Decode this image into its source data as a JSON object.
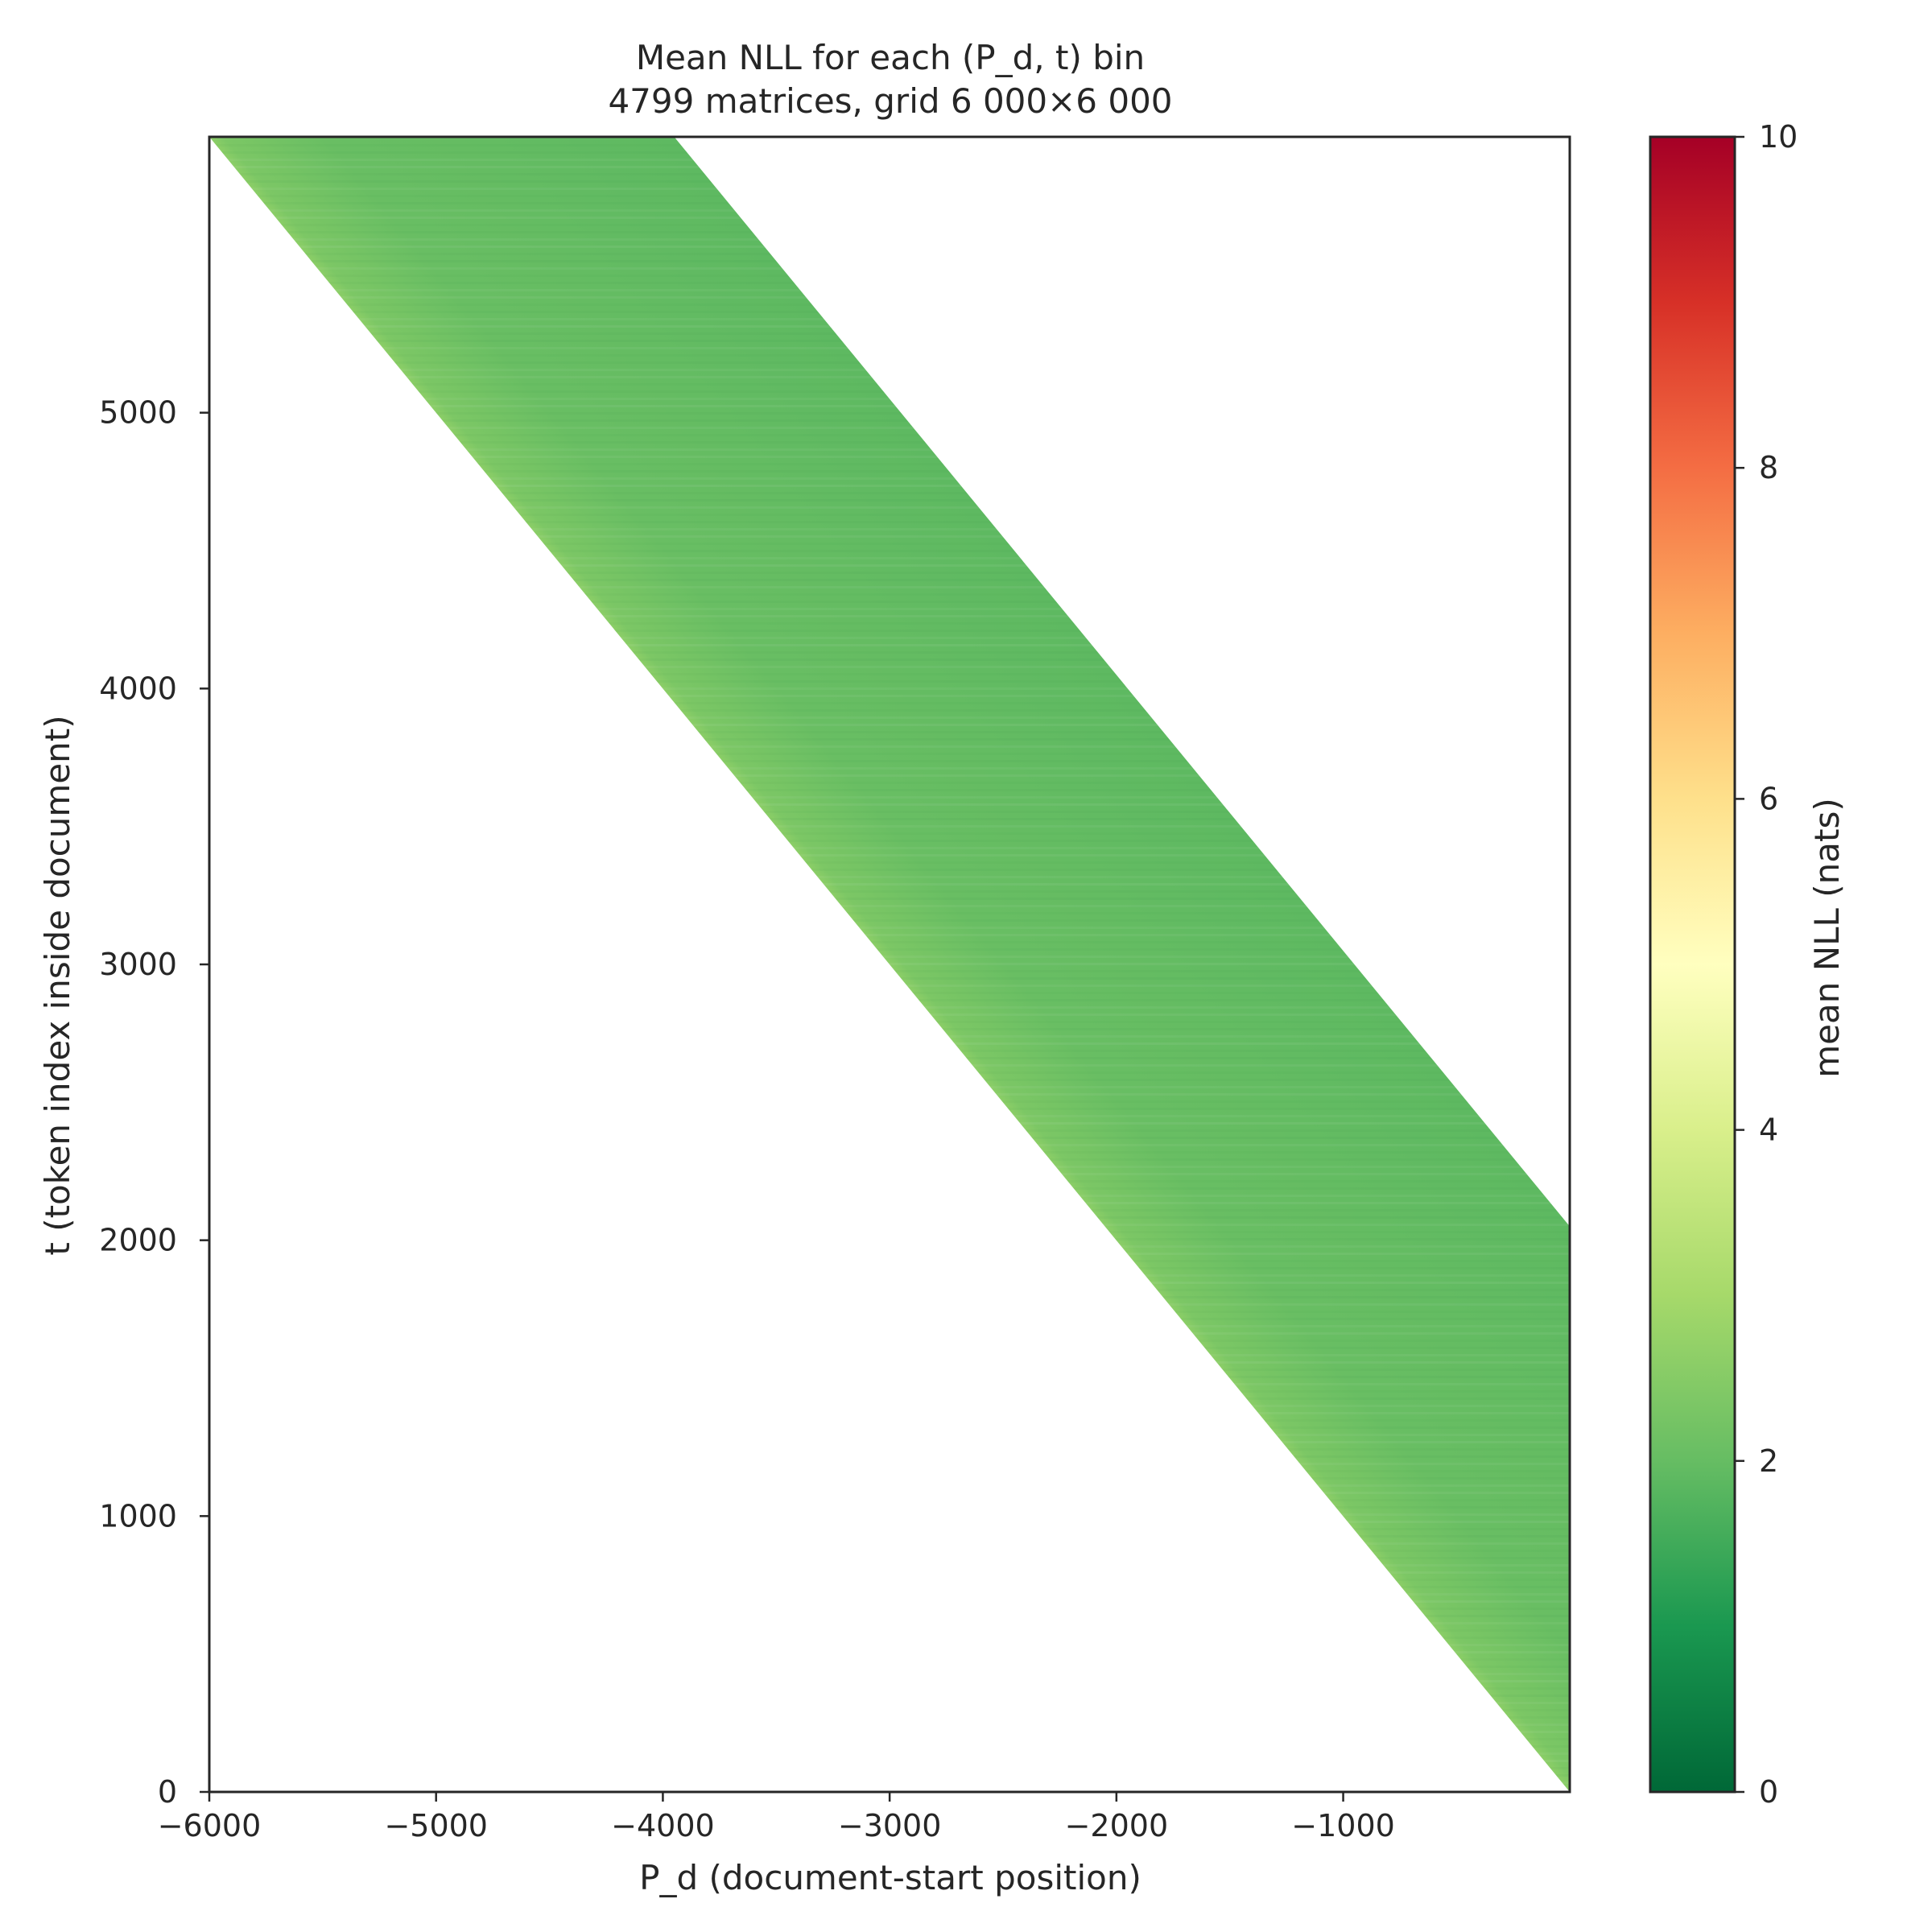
{
  "chart_data": {
    "type": "heatmap",
    "title": "Mean NLL for each (P_d, t) bin",
    "subtitle": "4799 matrices, grid 6 000×6 000",
    "xlabel": "P_d  (document-start position)",
    "ylabel": "t  (token index inside document)",
    "xlim": [
      -6000,
      -1
    ],
    "ylim": [
      0,
      6000
    ],
    "xticks": [
      -6000,
      -5000,
      -4000,
      -3000,
      -2000,
      -1000
    ],
    "xtick_labels": [
      "−6000",
      "−5000",
      "−4000",
      "−3000",
      "−2000",
      "−1000"
    ],
    "yticks": [
      0,
      1000,
      2000,
      3000,
      4000,
      5000
    ],
    "ytick_labels": [
      "0",
      "1000",
      "2000",
      "3000",
      "4000",
      "5000"
    ],
    "populated_region": {
      "description_band": "diagonal band where data exists",
      "lower_edge": [
        [
          -6000,
          6000
        ],
        [
          -1,
          0
        ]
      ],
      "upper_edge": [
        [
          -3950,
          6000
        ],
        [
          -1,
          2050
        ]
      ]
    },
    "band_value_nats": {
      "lower_edge": 2.6,
      "interior": 1.9
    },
    "colorbar": {
      "label": "mean NLL (nats)",
      "colormap": "RdYlGn_r",
      "range": [
        0,
        10
      ],
      "ticks": [
        0,
        2,
        4,
        6,
        8,
        10
      ],
      "tick_labels": [
        "0",
        "2",
        "4",
        "6",
        "8",
        "10"
      ],
      "stops": [
        "#006837",
        "#1a9850",
        "#66bd63",
        "#a6d96a",
        "#d9ef8b",
        "#ffffbf",
        "#fee08b",
        "#fdae61",
        "#f46d43",
        "#d73027",
        "#a50026"
      ]
    },
    "grid": false
  }
}
